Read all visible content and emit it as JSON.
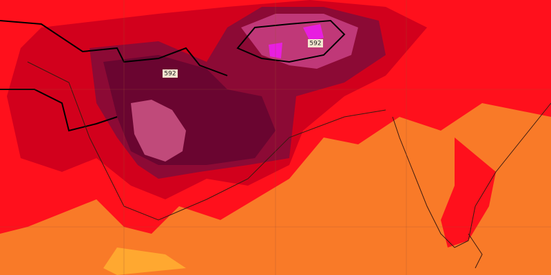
{
  "contour_labels": [
    "592",
    "592"
  ]
}
